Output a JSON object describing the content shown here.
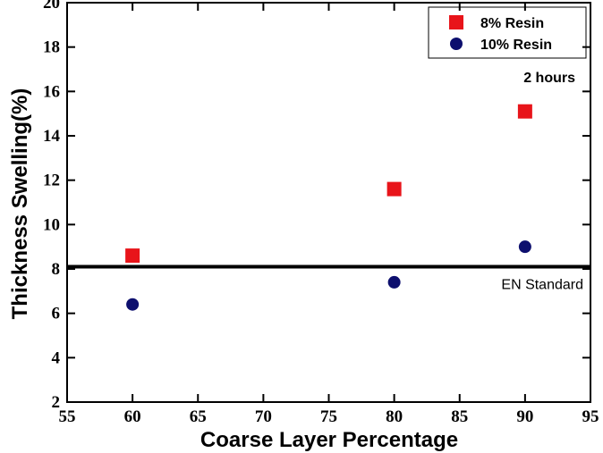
{
  "chart_data": {
    "type": "scatter",
    "x_label": "Coarse Layer Percentage",
    "y_label": "Thickness Swelling(%)",
    "xlim": [
      55,
      95
    ],
    "xticks": [
      55,
      60,
      65,
      70,
      75,
      80,
      85,
      90,
      95
    ],
    "ylim": [
      2,
      20
    ],
    "yticks": [
      2,
      4,
      6,
      8,
      10,
      12,
      14,
      16,
      18,
      20
    ],
    "series": [
      {
        "name": "8% Resin",
        "color": "#e8141a",
        "marker": "square",
        "x": [
          60,
          80,
          90
        ],
        "values": [
          8.6,
          11.6,
          15.1
        ]
      },
      {
        "name": "10% Resin",
        "color": "#0d0f6e",
        "marker": "circle",
        "x": [
          60,
          80,
          90
        ],
        "values": [
          6.4,
          7.4,
          9.0
        ]
      }
    ],
    "reference_line": {
      "value": 8.1,
      "label": "EN Standard"
    },
    "annotation": "2 hours",
    "legend": "upper right"
  }
}
